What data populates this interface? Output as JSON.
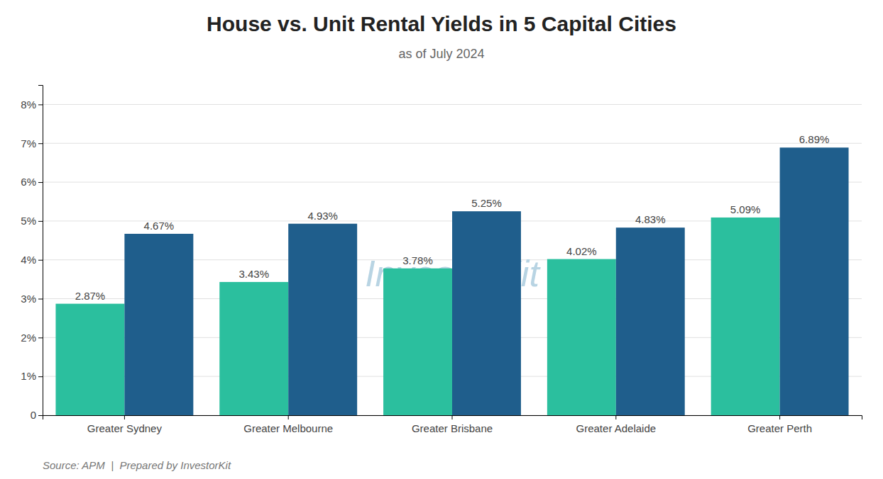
{
  "chart_data": {
    "type": "bar",
    "title": "House vs. Unit Rental Yields in 5 Capital Cities",
    "subtitle": "as of July 2024",
    "annotations": [
      "Source: APM  |  Prepared by InvestorKit",
      "InvestorKit"
    ],
    "categories": [
      "Greater Sydney",
      "Greater Melbourne",
      "Greater Brisbane",
      "Greater Adelaide",
      "Greater Perth"
    ],
    "series": [
      {
        "color": "#2bbf9e",
        "values": [
          2.87,
          3.43,
          3.78,
          4.02,
          5.09
        ],
        "value_labels": [
          "2.87%",
          "3.43%",
          "3.78%",
          "4.02%",
          "5.09%"
        ]
      },
      {
        "color": "#1f5e8c",
        "values": [
          4.67,
          4.93,
          5.25,
          4.83,
          6.89
        ],
        "value_labels": [
          "4.67%",
          "4.93%",
          "5.25%",
          "4.83%",
          "6.89%"
        ]
      }
    ],
    "ylim": [
      0,
      8.5
    ],
    "yticks": [
      0,
      {
        "value": 1,
        "label": "1%"
      },
      {
        "value": 2,
        "label": "2%"
      },
      {
        "value": 3,
        "label": "3%"
      },
      {
        "value": 4,
        "label": "4%"
      },
      {
        "value": 5,
        "label": "5%"
      },
      {
        "value": 6,
        "label": "6%"
      },
      {
        "value": 7,
        "label": "7%"
      },
      {
        "value": 8,
        "label": "8%"
      }
    ],
    "grid": true,
    "data_labels": true
  }
}
